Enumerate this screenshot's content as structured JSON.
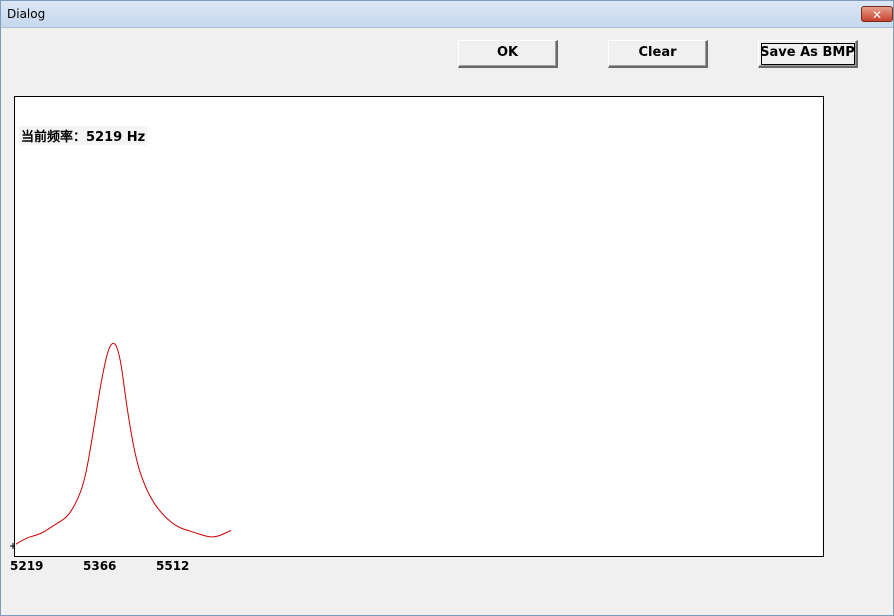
{
  "window": {
    "title": "Dialog",
    "close_glyph": "✕"
  },
  "toolbar": {
    "ok_label": "OK",
    "clear_label": "Clear",
    "save_label": "Save As BMP"
  },
  "readout": {
    "text": "当前频率：5219 Hz"
  },
  "chart_data": {
    "type": "line",
    "x_tick_labels": [
      "5219",
      "5366",
      "5512"
    ],
    "line_color": "#cc0000",
    "grid": false,
    "series": [
      {
        "values": [
          0.01,
          0.03,
          0.04,
          0.05,
          0.07,
          0.09,
          0.11,
          0.16,
          0.24,
          0.42,
          0.62,
          0.75,
          0.72,
          0.48,
          0.31,
          0.22,
          0.16,
          0.12,
          0.09,
          0.07,
          0.06,
          0.05,
          0.04,
          0.035,
          0.045,
          0.06
        ]
      }
    ]
  }
}
